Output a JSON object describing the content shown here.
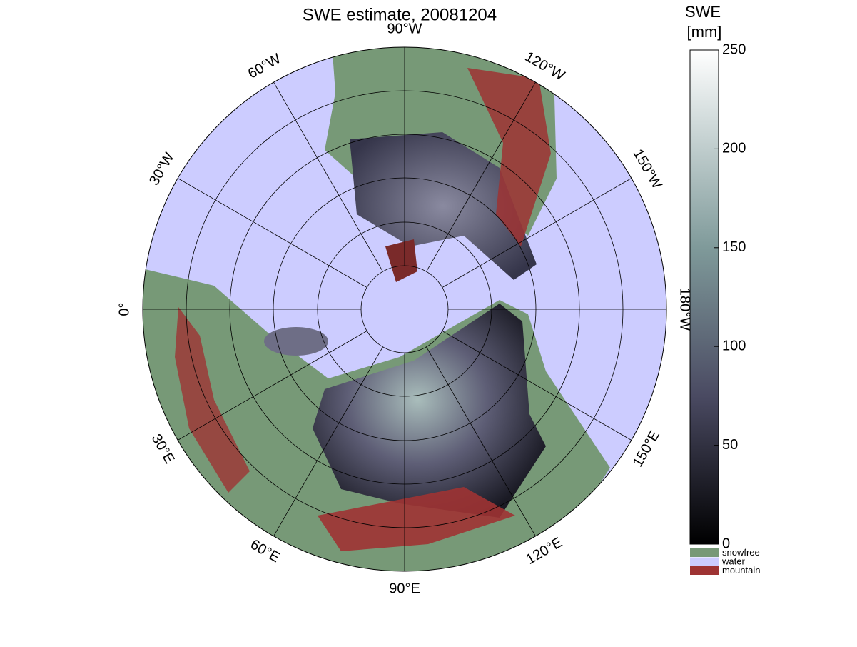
{
  "chart_data": {
    "type": "polar-map",
    "title": "SWE estimate, 20081204",
    "colorbar_label": [
      "SWE",
      "[mm]"
    ],
    "clim": [
      0,
      250
    ],
    "cticks": [
      0,
      50,
      100,
      150,
      200,
      250
    ],
    "meridians": [
      {
        "lon": -90,
        "label": "90°W"
      },
      {
        "lon": -120,
        "label": "120°W"
      },
      {
        "lon": -150,
        "label": "150°W"
      },
      {
        "lon": -180,
        "label": "180°W"
      },
      {
        "lon": 150,
        "label": "150°E"
      },
      {
        "lon": 120,
        "label": "120°E"
      },
      {
        "lon": 90,
        "label": "90°E"
      },
      {
        "lon": 60,
        "label": "60°E"
      },
      {
        "lon": 30,
        "label": "30°E"
      },
      {
        "lon": 0,
        "label": "0°"
      },
      {
        "lon": -30,
        "label": "30°W"
      },
      {
        "lon": -60,
        "label": "60°W"
      }
    ],
    "legend": [
      {
        "label": "snowfree",
        "color": "#779977"
      },
      {
        "label": "water",
        "color": "#ccccff"
      },
      {
        "label": "mountain",
        "color": "#9e3333"
      }
    ]
  }
}
